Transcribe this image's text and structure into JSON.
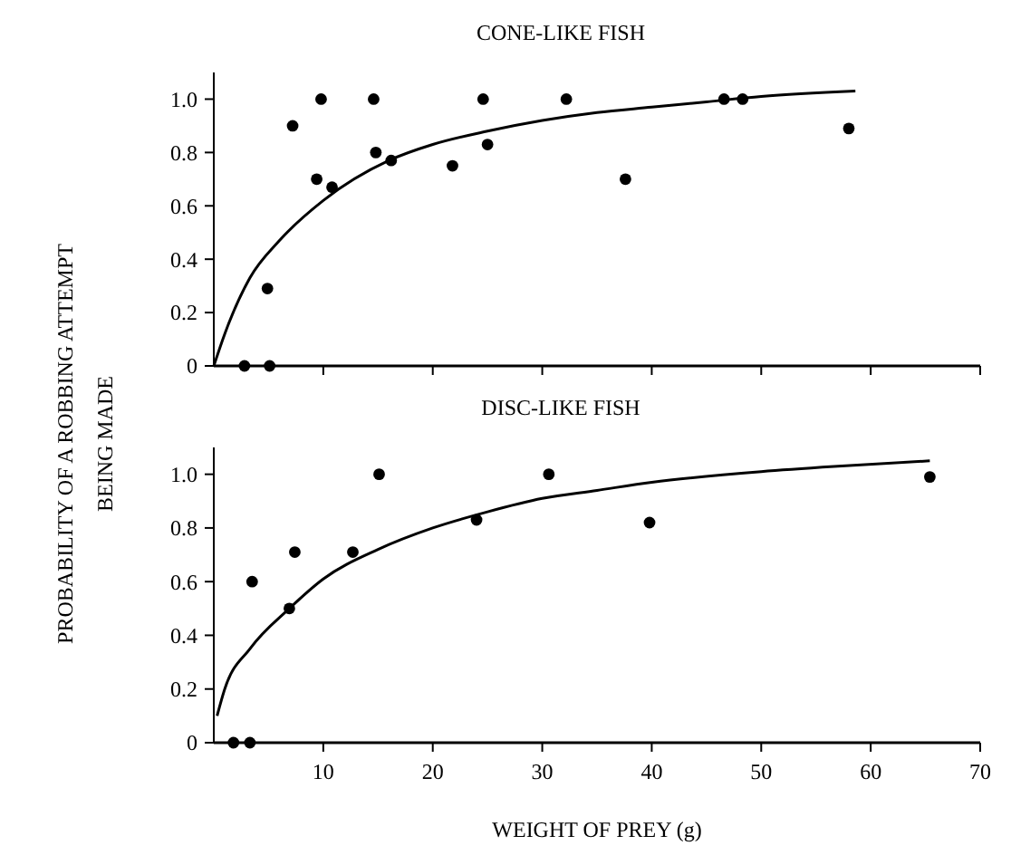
{
  "chart_data": [
    {
      "type": "scatter",
      "title": "CONE-LIKE FISH",
      "ylabel": "PROBABILITY OF A ROBBING ATTEMPT BEING MADE",
      "xlim": [
        0,
        70
      ],
      "ylim": [
        0,
        1.1
      ],
      "xticks": [
        10,
        20,
        30,
        40,
        50,
        60,
        70
      ],
      "yticks": [
        0,
        0.2,
        0.4,
        0.6,
        0.8,
        {
          "value": 1,
          "label": "1.0"
        }
      ],
      "tick_labels": "y",
      "series": [
        {
          "marker": "circle",
          "color": "#000000",
          "x": [
            2.8,
            5.1,
            4.9,
            7.2,
            9.4,
            9.8,
            10.8,
            14.6,
            14.8,
            16.2,
            21.8,
            24.6,
            25,
            32.2,
            37.6,
            46.6,
            48.3,
            58
          ],
          "values": [
            0,
            0,
            0.29,
            0.9,
            0.7,
            1,
            0.67,
            1,
            0.8,
            0.77,
            0.75,
            1,
            0.83,
            1,
            0.7,
            1,
            1,
            0.89
          ]
        },
        {
          "type": "line",
          "line_style": "solid",
          "color": "#000000",
          "x": [
            0,
            1,
            3.3,
            6,
            10,
            16,
            20,
            25,
            30,
            35,
            40,
            45,
            50,
            58.6
          ],
          "values": [
            0,
            0.12,
            0.33,
            0.47,
            0.62,
            0.77,
            0.83,
            0.88,
            0.92,
            0.95,
            0.97,
            0.99,
            1.01,
            1.03
          ]
        }
      ]
    },
    {
      "type": "scatter",
      "title": "DISC-LIKE FISH",
      "xlabel": "WEIGHT OF PREY (g)",
      "xlim": [
        0,
        70
      ],
      "ylim": [
        0,
        1.1
      ],
      "xticks": [
        10,
        20,
        30,
        40,
        50,
        60,
        70
      ],
      "yticks": [
        0,
        0.2,
        0.4,
        0.6,
        0.8,
        {
          "value": 1,
          "label": "1.0"
        }
      ],
      "series": [
        {
          "marker": "circle",
          "color": "#000000",
          "x": [
            1.8,
            3.3,
            3.5,
            6.9,
            7.4,
            12.7,
            15.1,
            24,
            30.6,
            39.8,
            65.4
          ],
          "values": [
            0,
            0,
            0.6,
            0.5,
            0.71,
            0.71,
            1,
            0.83,
            1,
            0.82,
            0.99
          ]
        },
        {
          "type": "line",
          "line_style": "solid",
          "color": "#000000",
          "x": [
            0.3,
            1,
            3.3,
            6.9,
            10,
            15,
            20,
            25,
            30,
            35,
            40,
            50,
            57,
            65.4
          ],
          "values": [
            0.1,
            0.2,
            0.35,
            0.5,
            0.61,
            0.72,
            0.8,
            0.86,
            0.91,
            0.94,
            0.97,
            1.01,
            1.03,
            1.05
          ]
        }
      ]
    }
  ]
}
